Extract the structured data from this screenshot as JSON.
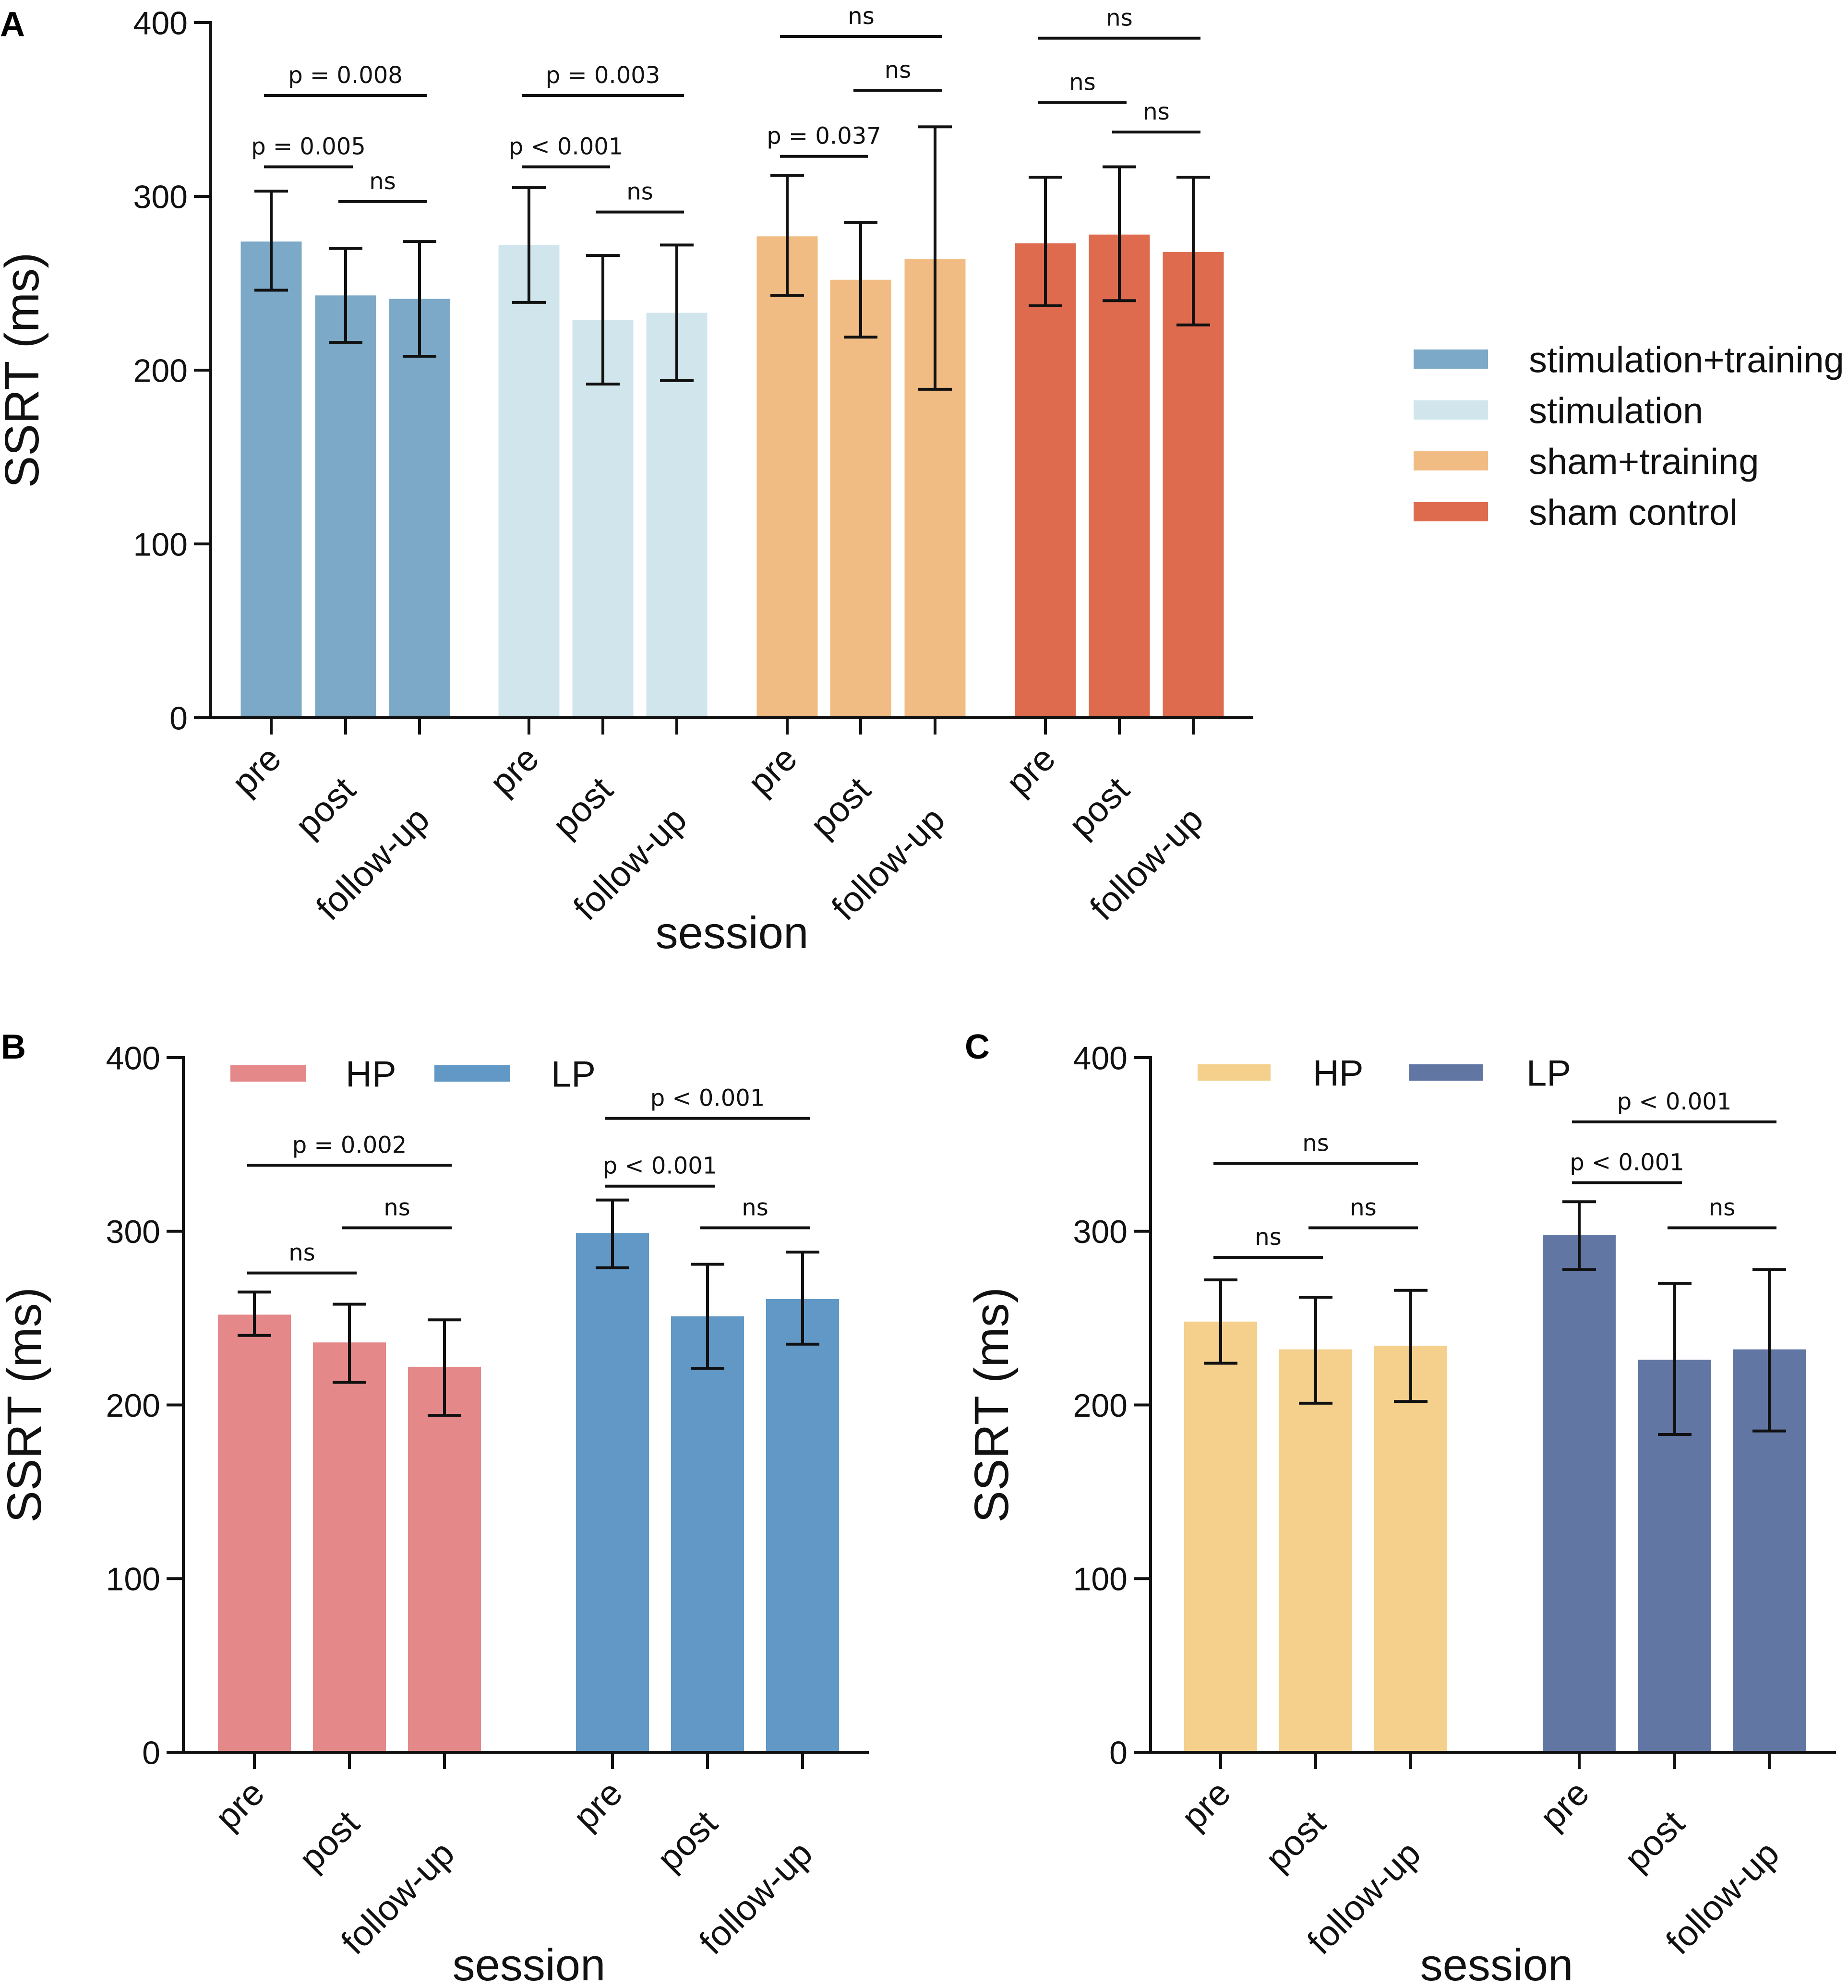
{
  "chart_data": [
    {
      "panel": "A",
      "type": "bar",
      "ylabel": "SSRT (ms)",
      "xlabel": "session",
      "ylim": [
        0,
        400
      ],
      "yticks": [
        0,
        100,
        200,
        300,
        400
      ],
      "categories": [
        "pre",
        "post",
        "follow-up"
      ],
      "legend_position": "right",
      "groups": [
        {
          "name": "stimulation+training",
          "color": "#7BA9C7",
          "values": [
            274,
            243,
            241
          ],
          "err_low": [
            246,
            216,
            208
          ],
          "err_high": [
            303,
            270,
            274
          ]
        },
        {
          "name": "stimulation",
          "color": "#D0E6EC",
          "values": [
            272,
            229,
            233
          ],
          "err_low": [
            239,
            192,
            194
          ],
          "err_high": [
            305,
            266,
            272
          ]
        },
        {
          "name": "sham+training",
          "color": "#F1BC83",
          "values": [
            277,
            252,
            264
          ],
          "err_low": [
            243,
            219,
            189
          ],
          "err_high": [
            312,
            285,
            340
          ]
        },
        {
          "name": "sham control",
          "color": "#DF6B4F",
          "values": [
            273,
            278,
            268
          ],
          "err_low": [
            237,
            240,
            226
          ],
          "err_high": [
            311,
            317,
            311
          ]
        }
      ],
      "annotations": [
        {
          "group": 0,
          "from": 0,
          "to": 1,
          "label": "p = 0.005",
          "y": 317
        },
        {
          "group": 0,
          "from": 1,
          "to": 2,
          "label": "ns",
          "y": 297
        },
        {
          "group": 0,
          "from": 0,
          "to": 2,
          "label": "p = 0.008",
          "y": 358
        },
        {
          "group": 1,
          "from": 0,
          "to": 1,
          "label": "p < 0.001",
          "y": 317
        },
        {
          "group": 1,
          "from": 1,
          "to": 2,
          "label": "ns",
          "y": 291
        },
        {
          "group": 1,
          "from": 0,
          "to": 2,
          "label": "p = 0.003",
          "y": 358
        },
        {
          "group": 2,
          "from": 0,
          "to": 1,
          "label": "p = 0.037",
          "y": 323
        },
        {
          "group": 2,
          "from": 1,
          "to": 2,
          "label": "ns",
          "y": 361
        },
        {
          "group": 2,
          "from": 0,
          "to": 2,
          "label": "ns",
          "y": 392
        },
        {
          "group": 3,
          "from": 0,
          "to": 1,
          "label": "ns",
          "y": 354
        },
        {
          "group": 3,
          "from": 1,
          "to": 2,
          "label": "ns",
          "y": 337
        },
        {
          "group": 3,
          "from": 0,
          "to": 2,
          "label": "ns",
          "y": 391
        }
      ]
    },
    {
      "panel": "B",
      "type": "bar",
      "ylabel": "SSRT (ms)",
      "xlabel": "session",
      "ylim": [
        0,
        400
      ],
      "yticks": [
        0,
        100,
        200,
        300,
        400
      ],
      "categories": [
        "pre",
        "post",
        "follow-up"
      ],
      "legend_position": "top-left",
      "groups": [
        {
          "name": "HP",
          "color": "#E5888A",
          "values": [
            252,
            236,
            222
          ],
          "err_low": [
            240,
            213,
            194
          ],
          "err_high": [
            265,
            258,
            249
          ]
        },
        {
          "name": "LP",
          "color": "#6198C6",
          "values": [
            299,
            251,
            261
          ],
          "err_low": [
            279,
            221,
            235
          ],
          "err_high": [
            318,
            281,
            288
          ]
        }
      ],
      "annotations": [
        {
          "group": 0,
          "from": 0,
          "to": 1,
          "label": "ns",
          "y": 276
        },
        {
          "group": 0,
          "from": 1,
          "to": 2,
          "label": "ns",
          "y": 302
        },
        {
          "group": 0,
          "from": 0,
          "to": 2,
          "label": "p = 0.002",
          "y": 338
        },
        {
          "group": 1,
          "from": 0,
          "to": 1,
          "label": "p < 0.001",
          "y": 326
        },
        {
          "group": 1,
          "from": 1,
          "to": 2,
          "label": "ns",
          "y": 302
        },
        {
          "group": 1,
          "from": 0,
          "to": 2,
          "label": "p < 0.001",
          "y": 365
        }
      ]
    },
    {
      "panel": "C",
      "type": "bar",
      "ylabel": "SSRT (ms)",
      "xlabel": "session",
      "ylim": [
        0,
        400
      ],
      "yticks": [
        0,
        100,
        200,
        300,
        400
      ],
      "categories": [
        "pre",
        "post",
        "follow-up"
      ],
      "legend_position": "top-left",
      "groups": [
        {
          "name": "HP",
          "color": "#F4D08C",
          "values": [
            248,
            232,
            234
          ],
          "err_low": [
            224,
            201,
            202
          ],
          "err_high": [
            272,
            262,
            266
          ]
        },
        {
          "name": "LP",
          "color": "#6276A4",
          "values": [
            298,
            226,
            232
          ],
          "err_low": [
            278,
            183,
            185
          ],
          "err_high": [
            317,
            270,
            278
          ]
        }
      ],
      "annotations": [
        {
          "group": 0,
          "from": 0,
          "to": 1,
          "label": "ns",
          "y": 285
        },
        {
          "group": 0,
          "from": 1,
          "to": 2,
          "label": "ns",
          "y": 302
        },
        {
          "group": 0,
          "from": 0,
          "to": 2,
          "label": "ns",
          "y": 339
        },
        {
          "group": 1,
          "from": 0,
          "to": 1,
          "label": "p < 0.001",
          "y": 328
        },
        {
          "group": 1,
          "from": 1,
          "to": 2,
          "label": "ns",
          "y": 302
        },
        {
          "group": 1,
          "from": 0,
          "to": 2,
          "label": "p < 0.001",
          "y": 363
        }
      ]
    }
  ]
}
